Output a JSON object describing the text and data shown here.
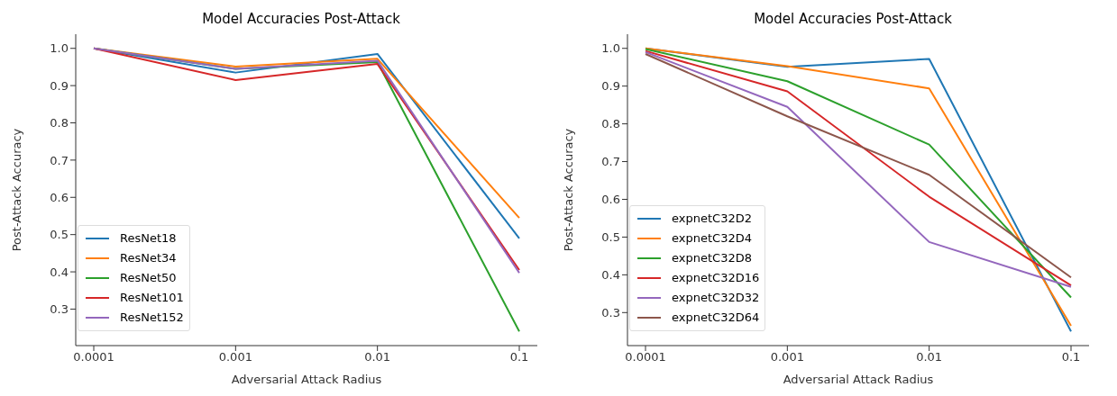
{
  "chart_data": [
    {
      "type": "line",
      "title": "Model Accuracies Post-Attack",
      "xlabel": "Adversarial Attack Radius",
      "ylabel": "Post-Attack Accuracy",
      "categories": [
        "0.0001",
        "0.001",
        "0.01",
        "0.1"
      ],
      "ylim": [
        0.202,
        1.038
      ],
      "yticks": [
        0.3,
        0.4,
        0.5,
        0.6,
        0.7,
        0.8,
        0.9,
        {
          "value": 1.0,
          "label": "1.0"
        }
      ],
      "grid": false,
      "legend": "bottom left",
      "marker": "none",
      "line_style": "solid",
      "series": [
        {
          "name": "ResNet18",
          "color": "#1f77b4",
          "values": [
            1.0,
            0.935,
            0.985,
            0.49
          ]
        },
        {
          "name": "ResNet34",
          "color": "#ff7f0e",
          "values": [
            1.0,
            0.951,
            0.972,
            0.545
          ]
        },
        {
          "name": "ResNet50",
          "color": "#2ca02c",
          "values": [
            1.0,
            0.945,
            0.963,
            0.24
          ]
        },
        {
          "name": "ResNet101",
          "color": "#d62728",
          "values": [
            1.0,
            0.915,
            0.958,
            0.405
          ]
        },
        {
          "name": "ResNet152",
          "color": "#9467bd",
          "values": [
            1.0,
            0.945,
            0.967,
            0.397
          ]
        }
      ]
    },
    {
      "type": "line",
      "title": "Model Accuracies Post-Attack",
      "xlabel": "Adversarial Attack Radius",
      "ylabel": "Post-Attack Accuracy",
      "categories": [
        "0.0001",
        "0.001",
        "0.01",
        "0.1"
      ],
      "ylim": [
        0.2125,
        1.0375
      ],
      "yticks": [
        0.3,
        0.4,
        0.5,
        0.6,
        0.7,
        0.8,
        0.9,
        {
          "value": 1.0,
          "label": "1.0"
        }
      ],
      "grid": false,
      "legend": "bottom left",
      "marker": "none",
      "line_style": "solid",
      "series": [
        {
          "name": "expnetC32D2",
          "color": "#1f77b4",
          "values": [
            1.0,
            0.951,
            0.972,
            0.25
          ]
        },
        {
          "name": "expnetC32D4",
          "color": "#ff7f0e",
          "values": [
            1.0,
            0.953,
            0.894,
            0.265
          ]
        },
        {
          "name": "expnetC32D8",
          "color": "#2ca02c",
          "values": [
            0.998,
            0.913,
            0.745,
            0.34
          ]
        },
        {
          "name": "expnetC32D16",
          "color": "#d62728",
          "values": [
            0.993,
            0.886,
            0.607,
            0.372
          ]
        },
        {
          "name": "expnetC32D32",
          "color": "#9467bd",
          "values": [
            0.99,
            0.845,
            0.487,
            0.368
          ]
        },
        {
          "name": "expnetC32D64",
          "color": "#8c564b",
          "values": [
            0.985,
            0.82,
            0.665,
            0.393
          ]
        }
      ]
    }
  ]
}
